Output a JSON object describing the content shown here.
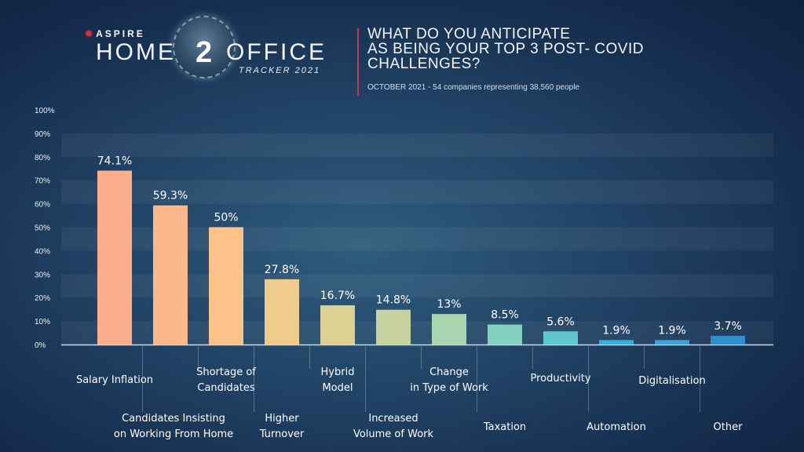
{
  "header": {
    "brand": "ASPIRE",
    "logo_home": "HOME",
    "logo_two": "2",
    "logo_office": "OFFICE",
    "logo_tracker": "TRACKER 2021"
  },
  "chart_data": {
    "type": "bar",
    "title": "WHAT DO YOU ANTICIPATE AS BEING YOUR TOP 3 POST- COVID CHALLENGES?",
    "title_lines": [
      "WHAT DO YOU ANTICIPATE",
      "AS BEING YOUR TOP 3 POST- COVID",
      "CHALLENGES?"
    ],
    "subtitle": "OCTOBER 2021 - 54 companies representing 38,560 people",
    "categories": [
      "Salary Inflation",
      "Candidates Insisting on Working From Home",
      "Shortage of Candidates",
      "Higher Turnover",
      "Hybrid Model",
      "Increased Volume of Work",
      "Change in Type of Work",
      "Taxation",
      "Productivity",
      "Automation",
      "Digitalisation",
      "Other"
    ],
    "category_lines": [
      [
        "Salary Inflation"
      ],
      [
        "Candidates Insisting",
        "on Working From Home"
      ],
      [
        "Shortage of",
        "Candidates"
      ],
      [
        "Higher",
        "Turnover"
      ],
      [
        "Hybrid",
        "Model"
      ],
      [
        "Increased",
        "Volume of Work"
      ],
      [
        "Change",
        "in Type of Work"
      ],
      [
        "Taxation"
      ],
      [
        "Productivity"
      ],
      [
        "Automation"
      ],
      [
        "Digitalisation"
      ],
      [
        "Other"
      ]
    ],
    "values": [
      74.1,
      59.3,
      50,
      27.8,
      16.7,
      14.8,
      13,
      8.5,
      5.6,
      1.9,
      1.9,
      3.7
    ],
    "data_labels": [
      "74.1%",
      "59.3%",
      "50%",
      "27.8%",
      "16.7%",
      "14.8%",
      "13%",
      "8.5%",
      "5.6%",
      "1.9%",
      "1.9%",
      "3.7%"
    ],
    "colors": [
      "#fbae8e",
      "#fdb78c",
      "#fdc28a",
      "#efcc8c",
      "#dcd093",
      "#c8d1a0",
      "#a9d4b0",
      "#84d1c0",
      "#5fc8cf",
      "#3aaed8",
      "#3aa4d8",
      "#2f8fcc"
    ],
    "ylim": [
      0,
      100
    ],
    "yticks": [
      "0%",
      "10%",
      "20%",
      "30%",
      "40%",
      "50%",
      "60%",
      "70%",
      "80%",
      "90%",
      "100%"
    ],
    "grid": "alternating bands",
    "xlabel": "",
    "ylabel": ""
  }
}
